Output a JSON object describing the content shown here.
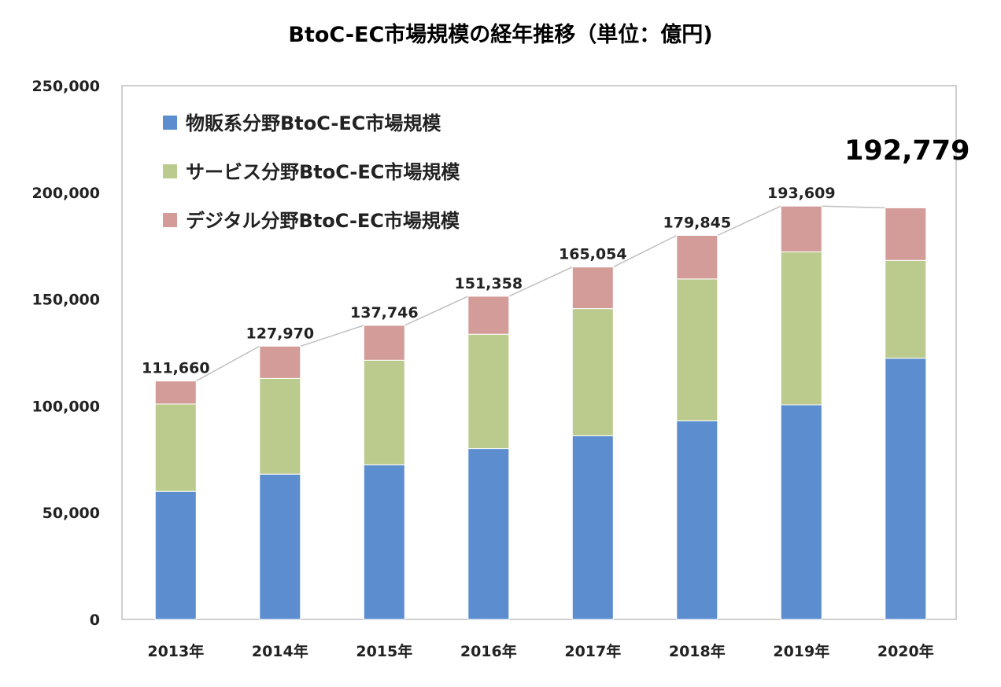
{
  "chart_data": {
    "type": "bar",
    "stacked": true,
    "title": "BtoC-EC市場規模の経年推移（単位：億円)",
    "categories": [
      "2013年",
      "2014年",
      "2015年",
      "2016年",
      "2017年",
      "2018年",
      "2019年",
      "2020年"
    ],
    "series": [
      {
        "name": "物販系分野BtoC-EC市場規模",
        "color": "#5B8DCF",
        "values": [
          59931,
          68043,
          72398,
          80043,
          86008,
          92992,
          100515,
          122333
        ]
      },
      {
        "name": "サービス分野BtoC-EC市場規模",
        "color": "#BBCB8E",
        "values": [
          40943,
          44816,
          49014,
          53532,
          59568,
          66471,
          71672,
          45832
        ]
      },
      {
        "name": "デジタル分野BtoC-EC市場規模",
        "color": "#D49C98",
        "values": [
          10786,
          15111,
          16334,
          17783,
          19478,
          20382,
          21422,
          24614
        ]
      }
    ],
    "totals": [
      "111,660",
      "127,970",
      "137,746",
      "151,358",
      "165,054",
      "179,845",
      "193,609",
      "192,779"
    ],
    "totals_values": [
      111660,
      127970,
      137746,
      151358,
      165054,
      179845,
      193609,
      192779
    ],
    "y_ticks": [
      "0",
      "50,000",
      "100,000",
      "150,000",
      "200,000",
      "250,000"
    ],
    "y_tick_values": [
      0,
      50000,
      100000,
      150000,
      200000,
      250000
    ],
    "ylim": [
      0,
      250000
    ],
    "legend_position": "top-left",
    "grid": false,
    "connector_line": true
  }
}
